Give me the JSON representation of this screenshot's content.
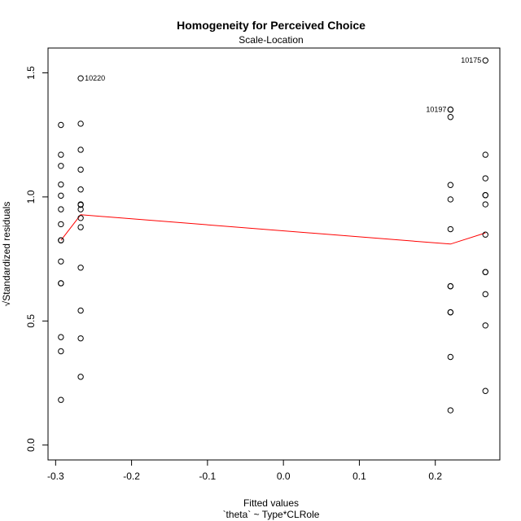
{
  "chart_data": {
    "type": "scatter",
    "title": "Homogeneity for Perceived Choice",
    "subtitle": "Scale-Location",
    "xlabel": "Fitted values",
    "xlabel2": "`theta` ~ Type*CLRole",
    "ylabel": "√Standardized residuals",
    "xlim": [
      -0.31,
      0.285
    ],
    "ylim": [
      -0.06,
      1.6
    ],
    "xticks": [
      -0.3,
      -0.2,
      -0.1,
      0.0,
      0.1,
      0.2
    ],
    "xtick_labels": [
      "-0.3",
      "-0.2",
      "-0.1",
      "0.0",
      "0.1",
      "0.2"
    ],
    "yticks": [
      0.0,
      0.5,
      1.0,
      1.5
    ],
    "ytick_labels": [
      "0.0",
      "0.5",
      "1.0",
      "1.5"
    ],
    "grid": false,
    "point_color": "#000000",
    "smooth_color": "#ff0000",
    "groups": [
      {
        "x": -0.293,
        "y": [
          1.29,
          1.17,
          1.125,
          1.05,
          1.005,
          0.95,
          0.89,
          0.825,
          0.825,
          0.74,
          0.652,
          0.652,
          0.435,
          0.378,
          0.182
        ]
      },
      {
        "x": -0.267,
        "y": [
          1.478,
          1.295,
          1.19,
          1.11,
          1.03,
          0.97,
          0.968,
          0.95,
          0.915,
          0.878,
          0.715,
          0.542,
          0.43,
          0.275
        ]
      },
      {
        "x": 0.22,
        "y": [
          1.352,
          1.352,
          1.322,
          1.048,
          0.99,
          0.87,
          0.64,
          0.64,
          0.535,
          0.535,
          0.355,
          0.14
        ]
      },
      {
        "x": 0.266,
        "y": [
          1.55,
          1.17,
          1.075,
          1.007,
          1.007,
          0.97,
          0.848,
          0.697,
          0.697,
          0.608,
          0.482,
          0.218
        ]
      }
    ],
    "smooth_line": {
      "x": [
        -0.293,
        -0.267,
        0.22,
        0.266
      ],
      "y": [
        0.825,
        0.928,
        0.81,
        0.855
      ]
    },
    "annotations": [
      {
        "label": "10220",
        "x": -0.267,
        "y": 1.478,
        "side": "right"
      },
      {
        "label": "10197",
        "x": 0.22,
        "y": 1.352,
        "side": "left"
      },
      {
        "label": "10175",
        "x": 0.266,
        "y": 1.55,
        "side": "left"
      }
    ]
  }
}
